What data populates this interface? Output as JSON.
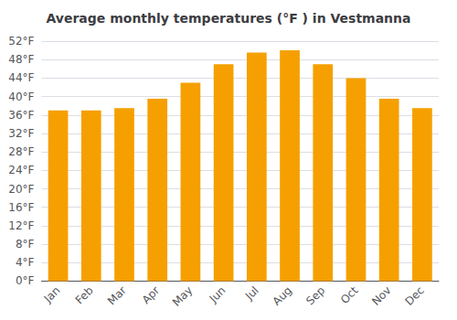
{
  "chart_data": {
    "type": "bar",
    "title": "Average monthly temperatures (°F ) in Vestmanna",
    "categories": [
      "Jan",
      "Feb",
      "Mar",
      "Apr",
      "May",
      "Jun",
      "Jul",
      "Aug",
      "Sep",
      "Oct",
      "Nov",
      "Dec"
    ],
    "values": [
      37,
      37,
      37.5,
      39.5,
      43,
      47,
      49.5,
      50,
      47,
      44,
      39.5,
      37.5
    ],
    "color": "#F5A000",
    "ylim": [
      0,
      52
    ],
    "yticks": [
      {
        "value": 0,
        "label": "0°F"
      },
      {
        "value": 4,
        "label": "4°F"
      },
      {
        "value": 8,
        "label": "8°F"
      },
      {
        "value": 12,
        "label": "12°F"
      },
      {
        "value": 16,
        "label": "16°F"
      },
      {
        "value": 20,
        "label": "20°F"
      },
      {
        "value": 24,
        "label": "24°F"
      },
      {
        "value": 28,
        "label": "28°F"
      },
      {
        "value": 32,
        "label": "32°F"
      },
      {
        "value": 36,
        "label": "36°F"
      },
      {
        "value": 40,
        "label": "40°F"
      },
      {
        "value": 44,
        "label": "44°F"
      },
      {
        "value": 48,
        "label": "48°F"
      },
      {
        "value": 52,
        "label": "52°F"
      }
    ],
    "grid": true
  }
}
